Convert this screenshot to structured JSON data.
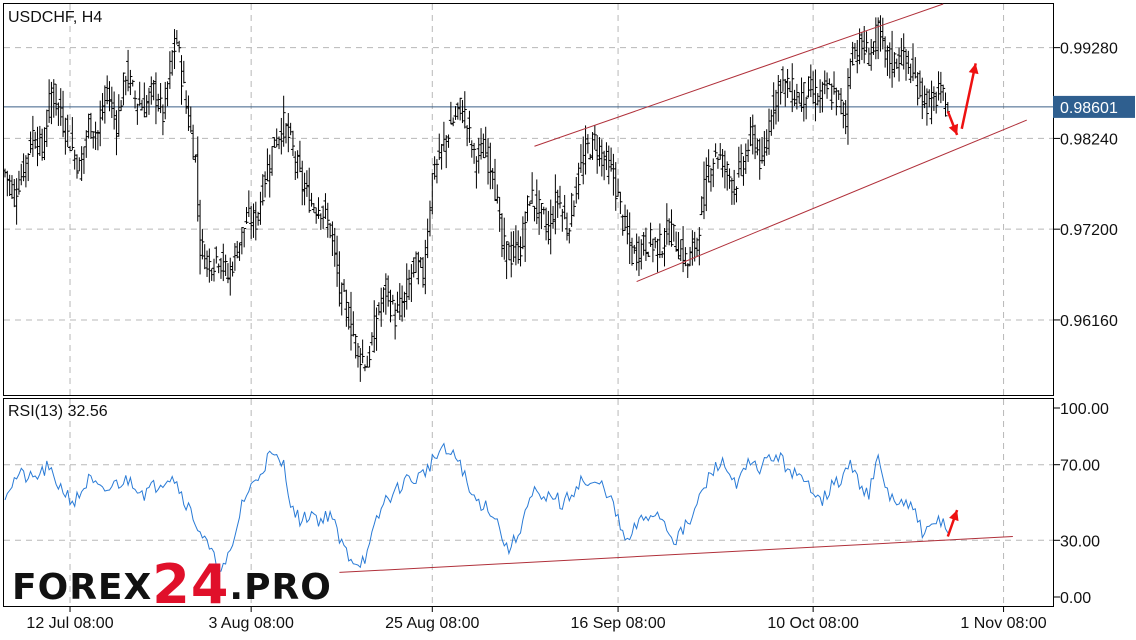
{
  "chart_data": [
    {
      "type": "ohlc",
      "title": "USDCHF, H4",
      "symbol": "USDCHF",
      "timeframe": "H4",
      "ylim": [
        0.953,
        0.9978
      ],
      "y_ticks": [
        "0.99280",
        "0.98240",
        "0.97200",
        "0.96160"
      ],
      "y_tick_values": [
        0.9928,
        0.9824,
        0.972,
        0.9616
      ],
      "current_price_label": "0.98601",
      "current_price": 0.98601,
      "x_labels": [
        "12 Jul 08:00",
        "3 Aug 08:00",
        "25 Aug 08:00",
        "16 Sep 08:00",
        "10 Oct 08:00",
        "1 Nov 08:00"
      ],
      "grid": true,
      "series": [
        {
          "close_points": [
            [
              0,
              0.9785
            ],
            [
              2,
              0.976
            ],
            [
              4,
              0.979
            ],
            [
              6,
              0.983
            ],
            [
              8,
              0.981
            ],
            [
              10,
              0.988
            ],
            [
              12,
              0.985
            ],
            [
              14,
              0.982
            ],
            [
              16,
              0.979
            ],
            [
              18,
              0.984
            ],
            [
              20,
              0.983
            ],
            [
              22,
              0.988
            ],
            [
              24,
              0.984
            ],
            [
              26,
              0.99
            ],
            [
              28,
              0.987
            ],
            [
              30,
              0.986
            ],
            [
              32,
              0.988
            ],
            [
              34,
              0.985
            ],
            [
              36,
              0.992
            ],
            [
              37,
              0.9935
            ],
            [
              39,
              0.986
            ],
            [
              41,
              0.98
            ],
            [
              42,
              0.97
            ],
            [
              44,
              0.968
            ],
            [
              46,
              0.969
            ],
            [
              48,
              0.9665
            ],
            [
              50,
              0.97
            ],
            [
              52,
              0.973
            ],
            [
              54,
              0.973
            ],
            [
              56,
              0.978
            ],
            [
              58,
              0.982
            ],
            [
              60,
              0.984
            ],
            [
              62,
              0.981
            ],
            [
              64,
              0.977
            ],
            [
              66,
              0.975
            ],
            [
              68,
              0.9745
            ],
            [
              70,
              0.972
            ],
            [
              72,
              0.965
            ],
            [
              74,
              0.962
            ],
            [
              76,
              0.958
            ],
            [
              78,
              0.9565
            ],
            [
              80,
              0.962
            ],
            [
              82,
              0.965
            ],
            [
              84,
              0.962
            ],
            [
              86,
              0.964
            ],
            [
              88,
              0.968
            ],
            [
              90,
              0.967
            ],
            [
              92,
              0.978
            ],
            [
              94,
              0.981
            ],
            [
              96,
              0.984
            ],
            [
              98,
              0.986
            ],
            [
              99,
              0.985
            ],
            [
              101,
              0.98
            ],
            [
              103,
              0.981
            ],
            [
              105,
              0.979
            ],
            [
              107,
              0.97
            ],
            [
              109,
              0.969
            ],
            [
              111,
              0.97
            ],
            [
              113,
              0.976
            ],
            [
              115,
              0.974
            ],
            [
              117,
              0.972
            ],
            [
              119,
              0.976
            ],
            [
              121,
              0.972
            ],
            [
              123,
              0.977
            ],
            [
              125,
              0.981
            ],
            [
              127,
              0.982
            ],
            [
              129,
              0.98
            ],
            [
              131,
              0.978
            ],
            [
              133,
              0.973
            ],
            [
              135,
              0.969
            ],
            [
              137,
              0.97
            ],
            [
              139,
              0.9705
            ],
            [
              141,
              0.97
            ],
            [
              143,
              0.972
            ],
            [
              145,
              0.97
            ],
            [
              147,
              0.968
            ],
            [
              149,
              0.971
            ],
            [
              151,
              0.978
            ],
            [
              153,
              0.981
            ],
            [
              155,
              0.979
            ],
            [
              157,
              0.977
            ],
            [
              159,
              0.98
            ],
            [
              161,
              0.983
            ],
            [
              163,
              0.979
            ],
            [
              165,
              0.986
            ],
            [
              167,
              0.989
            ],
            [
              169,
              0.988
            ],
            [
              171,
              0.987
            ],
            [
              173,
              0.988
            ],
            [
              175,
              0.987
            ],
            [
              177,
              0.988
            ],
            [
              179,
              0.987
            ],
            [
              181,
              0.985
            ],
            [
              182,
              0.992
            ],
            [
              184,
              0.993
            ],
            [
              186,
              0.992
            ],
            [
              188,
              0.9945
            ],
            [
              189,
              0.9925
            ],
            [
              191,
              0.991
            ],
            [
              193,
              0.992
            ],
            [
              195,
              0.99
            ],
            [
              197,
              0.988
            ],
            [
              199,
              0.986
            ],
            [
              201,
              0.9875
            ],
            [
              203,
              0.986
            ]
          ]
        }
      ],
      "trend_lines": [
        {
          "color": "#b0303a",
          "from": [
            114,
            0.9815
          ],
          "to": [
            202,
            0.9978
          ]
        },
        {
          "color": "#b0303a",
          "from": [
            136,
            0.966
          ],
          "to": [
            220,
            0.9845
          ]
        }
      ],
      "arrows": [
        {
          "color": "#ee1111",
          "direction": "down",
          "from": [
            203,
            0.9855
          ],
          "to": [
            205,
            0.9828
          ]
        },
        {
          "color": "#ee1111",
          "direction": "up",
          "from": [
            206,
            0.9835
          ],
          "to": [
            209,
            0.991
          ]
        }
      ]
    },
    {
      "type": "line",
      "title": "RSI(13) 32.56",
      "indicator": "RSI",
      "period": 13,
      "current_value": 32.56,
      "ylim": [
        0,
        100
      ],
      "y_ticks": [
        "100.00",
        "70.00",
        "30.00",
        "0.00"
      ],
      "y_tick_values": [
        100,
        70,
        30,
        0
      ],
      "x_labels": [
        "12 Jul 08:00",
        "3 Aug 08:00",
        "25 Aug 08:00",
        "16 Sep 08:00",
        "10 Oct 08:00",
        "1 Nov 08:00"
      ],
      "grid": true,
      "series": [
        {
          "values": [
            [
              0,
              55
            ],
            [
              3,
              65
            ],
            [
              6,
              62
            ],
            [
              9,
              68
            ],
            [
              12,
              58
            ],
            [
              15,
              50
            ],
            [
              18,
              62
            ],
            [
              21,
              55
            ],
            [
              24,
              60
            ],
            [
              27,
              62
            ],
            [
              30,
              55
            ],
            [
              33,
              60
            ],
            [
              36,
              65
            ],
            [
              39,
              50
            ],
            [
              42,
              35
            ],
            [
              45,
              20
            ],
            [
              47,
              15
            ],
            [
              49,
              25
            ],
            [
              51,
              50
            ],
            [
              54,
              62
            ],
            [
              57,
              75
            ],
            [
              60,
              70
            ],
            [
              62,
              45
            ],
            [
              64,
              40
            ],
            [
              66,
              45
            ],
            [
              68,
              40
            ],
            [
              70,
              45
            ],
            [
              72,
              30
            ],
            [
              74,
              22
            ],
            [
              76,
              18
            ],
            [
              78,
              22
            ],
            [
              80,
              40
            ],
            [
              82,
              52
            ],
            [
              84,
              55
            ],
            [
              86,
              62
            ],
            [
              88,
              62
            ],
            [
              90,
              65
            ],
            [
              92,
              72
            ],
            [
              94,
              78
            ],
            [
              96,
              75
            ],
            [
              98,
              72
            ],
            [
              100,
              55
            ],
            [
              102,
              50
            ],
            [
              104,
              48
            ],
            [
              106,
              40
            ],
            [
              108,
              25
            ],
            [
              110,
              30
            ],
            [
              112,
              45
            ],
            [
              114,
              55
            ],
            [
              116,
              50
            ],
            [
              118,
              55
            ],
            [
              120,
              48
            ],
            [
              122,
              55
            ],
            [
              124,
              62
            ],
            [
              126,
              58
            ],
            [
              128,
              60
            ],
            [
              130,
              55
            ],
            [
              132,
              40
            ],
            [
              134,
              28
            ],
            [
              136,
              38
            ],
            [
              138,
              42
            ],
            [
              140,
              45
            ],
            [
              142,
              40
            ],
            [
              144,
              30
            ],
            [
              146,
              35
            ],
            [
              148,
              42
            ],
            [
              150,
              55
            ],
            [
              152,
              65
            ],
            [
              154,
              72
            ],
            [
              156,
              65
            ],
            [
              158,
              60
            ],
            [
              160,
              70
            ],
            [
              162,
              68
            ],
            [
              164,
              72
            ],
            [
              166,
              75
            ],
            [
              168,
              70
            ],
            [
              170,
              65
            ],
            [
              172,
              60
            ],
            [
              174,
              58
            ],
            [
              176,
              52
            ],
            [
              178,
              58
            ],
            [
              180,
              62
            ],
            [
              182,
              70
            ],
            [
              184,
              60
            ],
            [
              186,
              55
            ],
            [
              188,
              72
            ],
            [
              190,
              55
            ],
            [
              192,
              50
            ],
            [
              194,
              48
            ],
            [
              196,
              45
            ],
            [
              198,
              32
            ],
            [
              200,
              38
            ],
            [
              202,
              42
            ],
            [
              203,
              32
            ]
          ]
        }
      ],
      "trend_lines": [
        {
          "color": "#b0303a",
          "from": [
            72,
            13
          ],
          "to": [
            217,
            32
          ]
        }
      ],
      "arrows": [
        {
          "color": "#ee1111",
          "direction": "up",
          "from": [
            203,
            32
          ],
          "to": [
            205,
            46
          ]
        }
      ]
    }
  ],
  "logo": {
    "part1": "FOREX",
    "part2": "24",
    "part3": ".PRO"
  }
}
